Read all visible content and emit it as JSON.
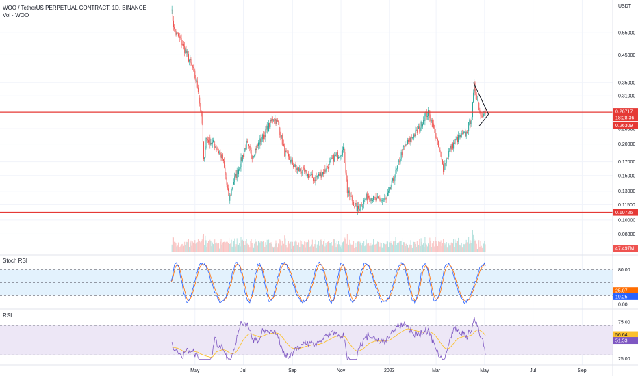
{
  "header": {
    "symbol": "WOO / TetherUS PERPETUAL CONTRACT, 1D, BINANCE",
    "volume_label": "Vol · WOO",
    "currency": "USDT"
  },
  "colors": {
    "up": "#26a69a",
    "down": "#ef5350",
    "level_line": "#e53935",
    "stoch_k": "#2962ff",
    "stoch_d": "#ff6d00",
    "rsi_line": "#7e57c2",
    "rsi_ma": "#fbc02d",
    "band_fill_stoch": "#e3f2fd",
    "band_fill_rsi": "#ede7f6"
  },
  "chart_data": [
    {
      "type": "candlestick",
      "panel": "price",
      "scale": "log",
      "ylim": [
        0.075,
        0.72
      ],
      "price_ticks": [
        "0.55000",
        "0.45000",
        "0.35000",
        "0.31000",
        "0.23000",
        "0.20000",
        "0.17000",
        "0.15000",
        "0.13000",
        "0.11500",
        "0.10000",
        "0.08800"
      ],
      "x_ticks": [
        "May",
        "Jul",
        "Sep",
        "Nov",
        "2023",
        "Mar",
        "May",
        "Jul",
        "Sep"
      ],
      "horizontal_levels": [
        0.26717,
        0.10726
      ],
      "price_labels": {
        "upper": "0.26717",
        "countdown": "18:28:36",
        "current": "0.26309",
        "lower": "0.10726",
        "volume": "47.497M"
      },
      "trendline": [
        [
          0.35,
          0.26
        ]
      ],
      "price_path": [
        [
          "2022-04-01",
          0.7
        ],
        [
          "2022-04-05",
          0.56
        ],
        [
          "2022-04-12",
          0.52
        ],
        [
          "2022-04-20",
          0.46
        ],
        [
          "2022-04-28",
          0.4
        ],
        [
          "2022-05-05",
          0.33
        ],
        [
          "2022-05-10",
          0.24
        ],
        [
          "2022-05-12",
          0.17
        ],
        [
          "2022-05-15",
          0.21
        ],
        [
          "2022-05-25",
          0.2
        ],
        [
          "2022-06-05",
          0.175
        ],
        [
          "2022-06-13",
          0.12
        ],
        [
          "2022-06-18",
          0.14
        ],
        [
          "2022-06-25",
          0.16
        ],
        [
          "2022-07-05",
          0.2
        ],
        [
          "2022-07-12",
          0.18
        ],
        [
          "2022-07-20",
          0.2
        ],
        [
          "2022-07-28",
          0.22
        ],
        [
          "2022-08-08",
          0.255
        ],
        [
          "2022-08-14",
          0.24
        ],
        [
          "2022-08-22",
          0.185
        ],
        [
          "2022-09-05",
          0.16
        ],
        [
          "2022-09-15",
          0.155
        ],
        [
          "2022-09-28",
          0.145
        ],
        [
          "2022-10-10",
          0.155
        ],
        [
          "2022-10-22",
          0.175
        ],
        [
          "2022-11-05",
          0.19
        ],
        [
          "2022-11-09",
          0.13
        ],
        [
          "2022-11-15",
          0.12
        ],
        [
          "2022-11-22",
          0.11
        ],
        [
          "2022-12-05",
          0.125
        ],
        [
          "2022-12-15",
          0.12
        ],
        [
          "2022-12-28",
          0.12
        ],
        [
          "2023-01-08",
          0.15
        ],
        [
          "2023-01-18",
          0.19
        ],
        [
          "2023-01-28",
          0.21
        ],
        [
          "2023-02-08",
          0.23
        ],
        [
          "2023-02-15",
          0.26
        ],
        [
          "2023-02-20",
          0.265
        ],
        [
          "2023-02-28",
          0.22
        ],
        [
          "2023-03-10",
          0.16
        ],
        [
          "2023-03-18",
          0.19
        ],
        [
          "2023-03-28",
          0.21
        ],
        [
          "2023-04-08",
          0.22
        ],
        [
          "2023-04-15",
          0.26
        ],
        [
          "2023-04-18",
          0.34
        ],
        [
          "2023-04-22",
          0.3
        ],
        [
          "2023-04-26",
          0.26
        ],
        [
          "2023-04-30",
          0.27
        ],
        [
          "2023-05-02",
          0.263
        ]
      ]
    },
    {
      "type": "line",
      "panel": "stoch_rsi",
      "title": "Stoch RSI",
      "ylim": [
        0,
        100
      ],
      "ticks": [
        "80.00",
        "0.00"
      ],
      "bands": [
        80,
        20
      ],
      "series": [
        {
          "values": [
            25.07
          ]
        },
        {
          "values": [
            19.25
          ]
        }
      ],
      "value_labels": [
        "25.07",
        "19.25"
      ]
    },
    {
      "type": "line",
      "panel": "rsi",
      "title": "RSI",
      "ylim": [
        20,
        85
      ],
      "ticks": [
        "75.00",
        "25.00"
      ],
      "bands": [
        70,
        30
      ],
      "series": [
        {
          "values": [
            56.64
          ]
        },
        {
          "values": [
            51.53
          ]
        }
      ],
      "value_labels": [
        "56.64",
        "51.53"
      ]
    }
  ]
}
